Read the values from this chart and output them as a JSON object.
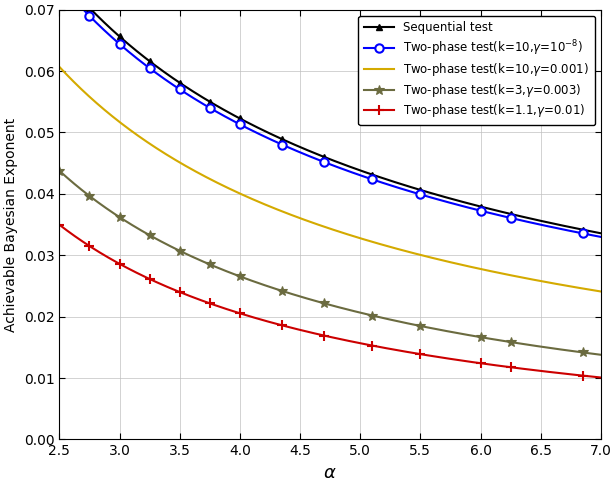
{
  "xlabel": "$\\alpha$",
  "ylabel": "Achievable Bayesian Exponent",
  "xlim": [
    2.5,
    7.0
  ],
  "ylim": [
    0,
    0.07
  ],
  "xticks": [
    2.5,
    3.0,
    3.5,
    4.0,
    4.5,
    5.0,
    5.5,
    6.0,
    6.5,
    7.0
  ],
  "yticks": [
    0,
    0.01,
    0.02,
    0.03,
    0.04,
    0.05,
    0.06,
    0.07
  ],
  "figsize": [
    6.16,
    4.86
  ],
  "dpi": 100,
  "curves": [
    {
      "name": "seq",
      "color": "black",
      "marker": "^",
      "ms": 5,
      "mfc": "black",
      "mew": 1.0,
      "lw": 1.5,
      "label": "Sequential test",
      "formula": "seq"
    },
    {
      "name": "blue",
      "color": "#0000ff",
      "marker": "o",
      "ms": 6,
      "mfc": "white",
      "mew": 1.5,
      "lw": 1.5,
      "label": "Two-phase test(k=10,$\\gamma$=10$^{-8}$)",
      "formula": "two_phase",
      "k": 10,
      "gamma": 1e-08
    },
    {
      "name": "yellow",
      "color": "#d4aa00",
      "marker": null,
      "ms": 0,
      "mfc": null,
      "mew": 0,
      "lw": 1.5,
      "label": "Two-phase test(k=10,$\\gamma$=0.001)",
      "formula": "two_phase",
      "k": 10,
      "gamma": 0.001
    },
    {
      "name": "gray",
      "color": "#6b6b40",
      "marker": "*",
      "ms": 7,
      "mfc": "#6b6b40",
      "mew": 0.8,
      "lw": 1.5,
      "label": "Two-phase test(k=3,$\\gamma$=0.003)",
      "formula": "two_phase",
      "k": 3,
      "gamma": 0.003
    },
    {
      "name": "red",
      "color": "#cc0000",
      "marker": "+",
      "ms": 7,
      "mfc": "#cc0000",
      "mew": 1.5,
      "lw": 1.5,
      "label": "Two-phase test(k=1.1,$\\gamma$=0.01)",
      "formula": "two_phase",
      "k": 1.1,
      "gamma": 0.01
    }
  ],
  "marker_alphas": [
    2.5,
    2.75,
    3.0,
    3.25,
    3.5,
    3.75,
    4.0,
    4.35,
    4.7,
    5.1,
    5.5,
    6.0,
    6.25,
    6.85
  ]
}
